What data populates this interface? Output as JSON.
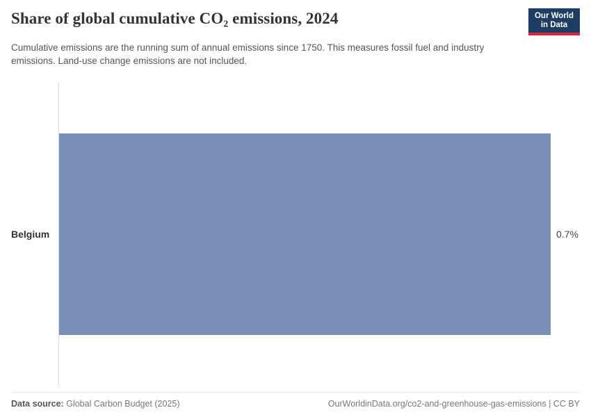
{
  "header": {
    "title": "Share of global cumulative CO₂ emissions, 2024",
    "subtitle": "Cumulative emissions are the running sum of annual emissions since 1750. This measures fossil fuel and industry emissions. Land-use change emissions are not included.",
    "logo": {
      "line1": "Our World",
      "line2": "in Data",
      "bg_color": "#1d3d63",
      "accent_color": "#e0243a"
    }
  },
  "chart_data": {
    "type": "bar",
    "orientation": "horizontal",
    "title": "Share of global cumulative CO₂ emissions, 2024",
    "categories": [
      "Belgium"
    ],
    "values": [
      0.7
    ],
    "unit": "%",
    "value_labels": [
      "0.7%"
    ],
    "xlim": [
      0,
      0.7
    ],
    "bar_color": "#7a8fb5",
    "axis_line_color": "#dcdcdc",
    "grid": false,
    "legend": false
  },
  "footer": {
    "data_source_label": "Data source:",
    "data_source_value": "Global Carbon Budget (2025)",
    "link_text": "OurWorldinData.org/co2-and-greenhouse-gas-emissions | CC BY"
  }
}
